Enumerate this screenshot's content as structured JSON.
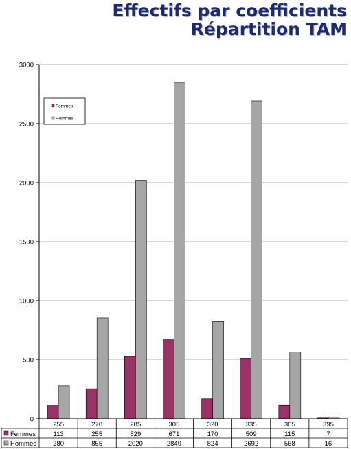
{
  "page": {
    "title_line1": "Effectifs par coefficients",
    "title_line2": "Répartition TAM"
  },
  "chart_data": {
    "type": "bar",
    "categories": [
      "255",
      "270",
      "285",
      "305",
      "320",
      "335",
      "365",
      "395"
    ],
    "series": [
      {
        "name": "Femmes",
        "color": "#993366",
        "values": [
          113,
          255,
          529,
          671,
          170,
          509,
          115,
          7
        ]
      },
      {
        "name": "Hommes",
        "color": "#a6a6a6",
        "values": [
          280,
          855,
          2020,
          2849,
          824,
          2692,
          568,
          16
        ]
      }
    ],
    "title": "Effectifs par coefficients Répartition TAM",
    "ylim": [
      0,
      3000
    ],
    "yticks": [
      0,
      500,
      1000,
      1500,
      2000,
      2500,
      3000
    ],
    "grid": true,
    "legend_position": "top-left",
    "data_table": true
  }
}
